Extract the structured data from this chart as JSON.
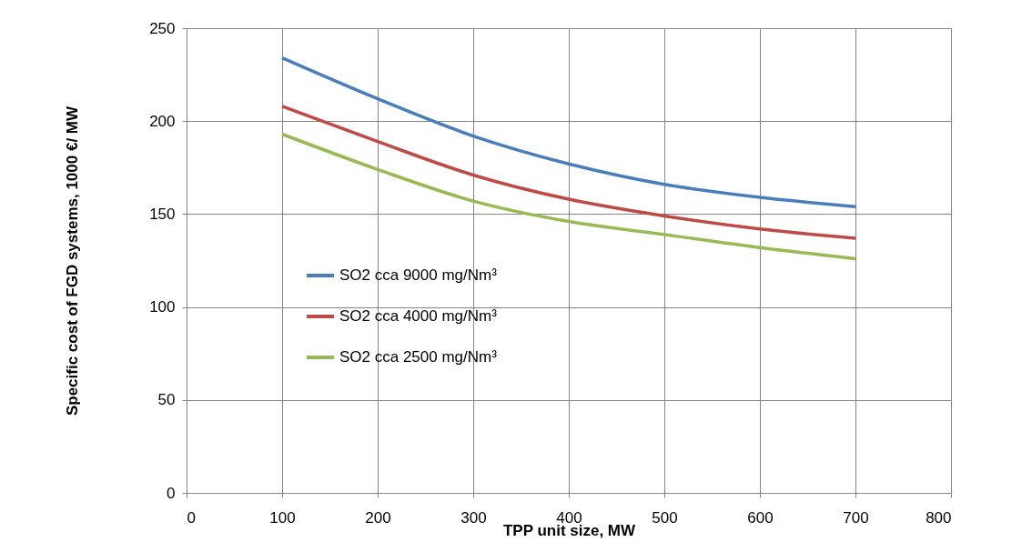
{
  "chart_data": {
    "type": "line",
    "xlabel": "TPP unit size, MW",
    "ylabel": "Specific cost of FGD systems, 1000 €/ MW",
    "x": [
      100,
      200,
      300,
      400,
      500,
      600,
      700
    ],
    "series": [
      {
        "name": "SO2 cca 9000 mg/Nm³",
        "color": "#4a7ebb",
        "values": [
          234,
          212,
          192,
          177,
          166,
          159,
          154
        ]
      },
      {
        "name": "SO2 cca 4000 mg/Nm³",
        "color": "#be4b48",
        "values": [
          208,
          189,
          171,
          158,
          149,
          142,
          137
        ]
      },
      {
        "name": "SO2 cca 2500 mg/Nm³",
        "color": "#98b954",
        "values": [
          193,
          174,
          157,
          146,
          139,
          132,
          126
        ]
      }
    ],
    "xlim": [
      0,
      800
    ],
    "xticks": [
      0,
      100,
      200,
      300,
      400,
      500,
      600,
      700,
      800
    ],
    "ylim": [
      0,
      250
    ],
    "yticks": [
      0,
      50,
      100,
      150,
      200,
      250
    ],
    "grid": true,
    "legend": "left",
    "marker": "none",
    "line_style": "solid"
  }
}
